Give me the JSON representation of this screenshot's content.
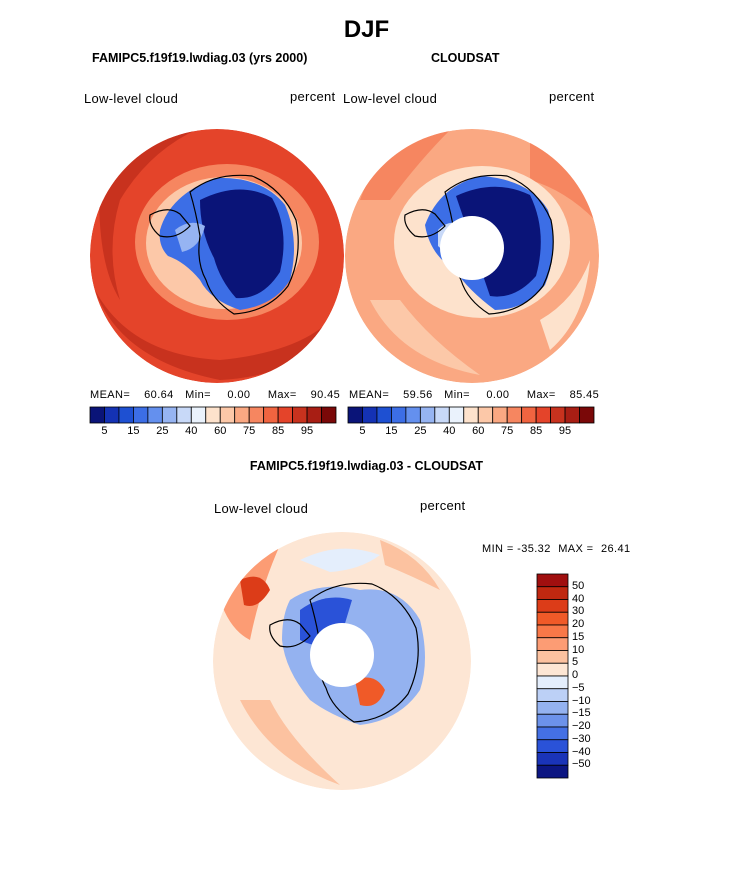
{
  "figure": {
    "season": "DJF",
    "left_title": "FAMIPC5.f19f19.lwdiag.03 (yrs 2000)",
    "right_title": "CLOUDSAT",
    "diff_title": "FAMIPC5.f19f19.lwdiag.03 - CLOUDSAT"
  },
  "chart_data": [
    {
      "type": "heatmap",
      "projection": "south-polar-stereographic",
      "title": "FAMIPC5.f19f19.lwdiag.03 (yrs 2000)",
      "variable": "Low-level cloud",
      "units": "percent",
      "stats": {
        "mean_label": "MEAN=",
        "mean": "60.64",
        "min_label": "Min=",
        "min": "0.00",
        "max_label": "Max=",
        "max": "90.45"
      },
      "colorbar_levels": [
        5,
        10,
        15,
        20,
        25,
        30,
        40,
        50,
        60,
        65,
        70,
        75,
        80,
        85,
        90,
        95
      ],
      "colorbar_tick_labels": [
        "5",
        "15",
        "25",
        "40",
        "60",
        "75",
        "85",
        "95"
      ],
      "colors": [
        "#0a1478",
        "#1432b4",
        "#1e50d2",
        "#3c6ee6",
        "#6490ee",
        "#96b4f2",
        "#c8d9f8",
        "#eaf2fc",
        "#fde2cc",
        "#fcc8a8",
        "#faa882",
        "#f68660",
        "#f06440",
        "#e4442a",
        "#c8321e",
        "#a81e14",
        "#7a0808"
      ],
      "hole_at_pole": false
    },
    {
      "type": "heatmap",
      "projection": "south-polar-stereographic",
      "title": "CLOUDSAT",
      "variable": "Low-level cloud",
      "units": "percent",
      "stats": {
        "mean_label": "MEAN=",
        "mean": "59.56",
        "min_label": "Min=",
        "min": "0.00",
        "max_label": "Max=",
        "max": "85.45"
      },
      "colorbar_levels": [
        5,
        10,
        15,
        20,
        25,
        30,
        40,
        50,
        60,
        65,
        70,
        75,
        80,
        85,
        90,
        95
      ],
      "colorbar_tick_labels": [
        "5",
        "15",
        "25",
        "40",
        "60",
        "75",
        "85",
        "95"
      ],
      "colors": [
        "#0a1478",
        "#1432b4",
        "#1e50d2",
        "#3c6ee6",
        "#6490ee",
        "#96b4f2",
        "#c8d9f8",
        "#eaf2fc",
        "#fde2cc",
        "#fcc8a8",
        "#faa882",
        "#f68660",
        "#f06440",
        "#e4442a",
        "#c8321e",
        "#a81e14",
        "#7a0808"
      ],
      "hole_at_pole": true
    },
    {
      "type": "heatmap",
      "projection": "south-polar-stereographic",
      "title": "FAMIPC5.f19f19.lwdiag.03 - CLOUDSAT",
      "variable": "Low-level cloud",
      "units": "percent",
      "stats": {
        "min_label": "MIN =",
        "min": "-35.32",
        "max_label": "MAX =",
        "max": "26.41"
      },
      "colorbar_levels": [
        50,
        40,
        30,
        20,
        15,
        10,
        5,
        0,
        -5,
        -10,
        -15,
        -20,
        -30,
        -40,
        -50
      ],
      "colorbar_tick_labels": [
        "50",
        "40",
        "30",
        "20",
        "15",
        "10",
        "5",
        "0",
        "−5",
        "−10",
        "−15",
        "−20",
        "−30",
        "−40",
        "−50"
      ],
      "colors": [
        "#a00f0f",
        "#c02810",
        "#dc3c18",
        "#f05a28",
        "#f87848",
        "#fc9c74",
        "#fcc2a0",
        "#fde6d4",
        "#e4eefc",
        "#bcd0f6",
        "#94b2f0",
        "#6c92ea",
        "#4470e4",
        "#2a52d8",
        "#1a34b8",
        "#0c1682"
      ],
      "hole_at_pole": true
    }
  ]
}
